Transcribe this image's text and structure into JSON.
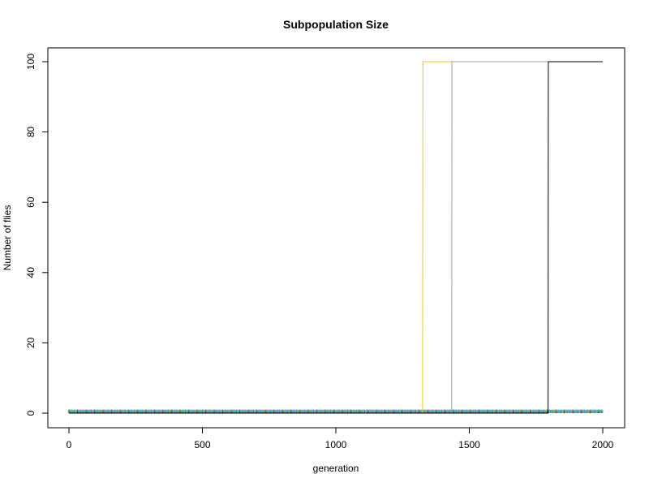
{
  "chart_data": {
    "type": "line",
    "title": "Subpopulation Size",
    "xlabel": "generation",
    "ylabel": "Number of flies",
    "xlim": [
      0,
      2000
    ],
    "ylim": [
      0,
      100
    ],
    "x_ticks": [
      0,
      500,
      1000,
      1500,
      2000
    ],
    "y_ticks": [
      0,
      20,
      40,
      60,
      80,
      100
    ],
    "x_tick_labels": [
      "0",
      "500",
      "1000",
      "1500",
      "2000"
    ],
    "y_tick_labels": [
      "0",
      "20",
      "40",
      "60",
      "80",
      "100"
    ],
    "grid": false,
    "legend": "none",
    "baseline_palette": [
      "#000000",
      "#DF536B",
      "#61D04F",
      "#2297E6",
      "#28E2E5",
      "#CD0BBC",
      "#F5C710",
      "#9E9E9E"
    ],
    "baseline_value": 1,
    "baseline_interval": [
      0,
      2000
    ],
    "series": [
      {
        "color": "#F5C710",
        "x": [
          0,
          1325,
          1326,
          2000
        ],
        "y": [
          0,
          0,
          100,
          100
        ]
      },
      {
        "color": "#9E9E9E",
        "x": [
          0,
          1434,
          1435,
          2000
        ],
        "y": [
          0,
          0,
          100,
          100
        ]
      },
      {
        "color": "#000000",
        "x": [
          0,
          1795,
          1796,
          2000
        ],
        "y": [
          0,
          0,
          100,
          100
        ]
      }
    ]
  }
}
